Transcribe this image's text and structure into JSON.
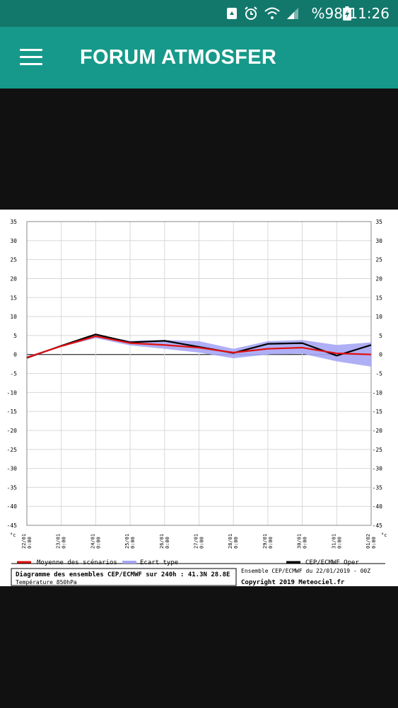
{
  "status_bar": {
    "battery": "%98",
    "time": "11:26",
    "icons": [
      "recycle-icon",
      "alarm-icon",
      "wifi-icon",
      "signal-icon",
      "battery-charging-icon"
    ]
  },
  "app_bar": {
    "title": "FORUM ATMOSFER",
    "menu_icon": "hamburger-menu-icon"
  },
  "colors": {
    "status_bar": "#13786c",
    "app_bar": "#16998a",
    "background": "#111111",
    "mean": "#e01010",
    "spread": "#a6a6f5",
    "oper": "#000000"
  },
  "chart_data": {
    "type": "line",
    "yunit": "°c",
    "ylim": [
      -45,
      35
    ],
    "yticks": [
      35,
      30,
      25,
      20,
      15,
      10,
      5,
      0,
      -5,
      -10,
      -15,
      -20,
      -25,
      -30,
      -35,
      -40,
      -45
    ],
    "categories": [
      [
        "22/01",
        "0:00"
      ],
      [
        "23/01",
        "0:00"
      ],
      [
        "24/01",
        "0:00"
      ],
      [
        "25/01",
        "0:00"
      ],
      [
        "26/01",
        "0:00"
      ],
      [
        "27/01",
        "0:00"
      ],
      [
        "28/01",
        "0:00"
      ],
      [
        "29/01",
        "0:00"
      ],
      [
        "30/01",
        "0:00"
      ],
      [
        "31/01",
        "0:00"
      ],
      [
        "01/02",
        "0:00"
      ]
    ],
    "grid": true,
    "series": [
      {
        "name": "Moyenne des scénarios",
        "color": "#e01010",
        "values": [
          -0.8,
          2.2,
          4.8,
          3.0,
          2.5,
          1.8,
          0.5,
          1.5,
          1.8,
          0.3,
          0.0
        ]
      },
      {
        "name": "Ecart type",
        "color": "#a6a6f5",
        "band": true,
        "upper": [
          -0.5,
          2.4,
          5.2,
          3.6,
          3.8,
          3.5,
          1.5,
          3.5,
          3.8,
          2.5,
          3.2
        ],
        "lower": [
          -1.1,
          2.0,
          4.3,
          2.4,
          1.5,
          0.5,
          -1.0,
          0.0,
          0.2,
          -1.8,
          -3.2
        ]
      },
      {
        "name": "CEP/ECMWF Oper",
        "color": "#000000",
        "values": [
          -0.9,
          2.3,
          5.3,
          3.2,
          3.6,
          2.0,
          0.4,
          2.8,
          3.0,
          -0.3,
          2.5
        ]
      }
    ],
    "title_line1": "Diagramme des ensembles CEP/ECMWF sur 240h : 41.3N 28.8E",
    "title_line2": "Température 850hPa",
    "run_info": "Ensemble CEP/ECMWF du 22/01/2019 - 00Z",
    "copyright": "Copyright 2019 Meteociel.fr"
  }
}
